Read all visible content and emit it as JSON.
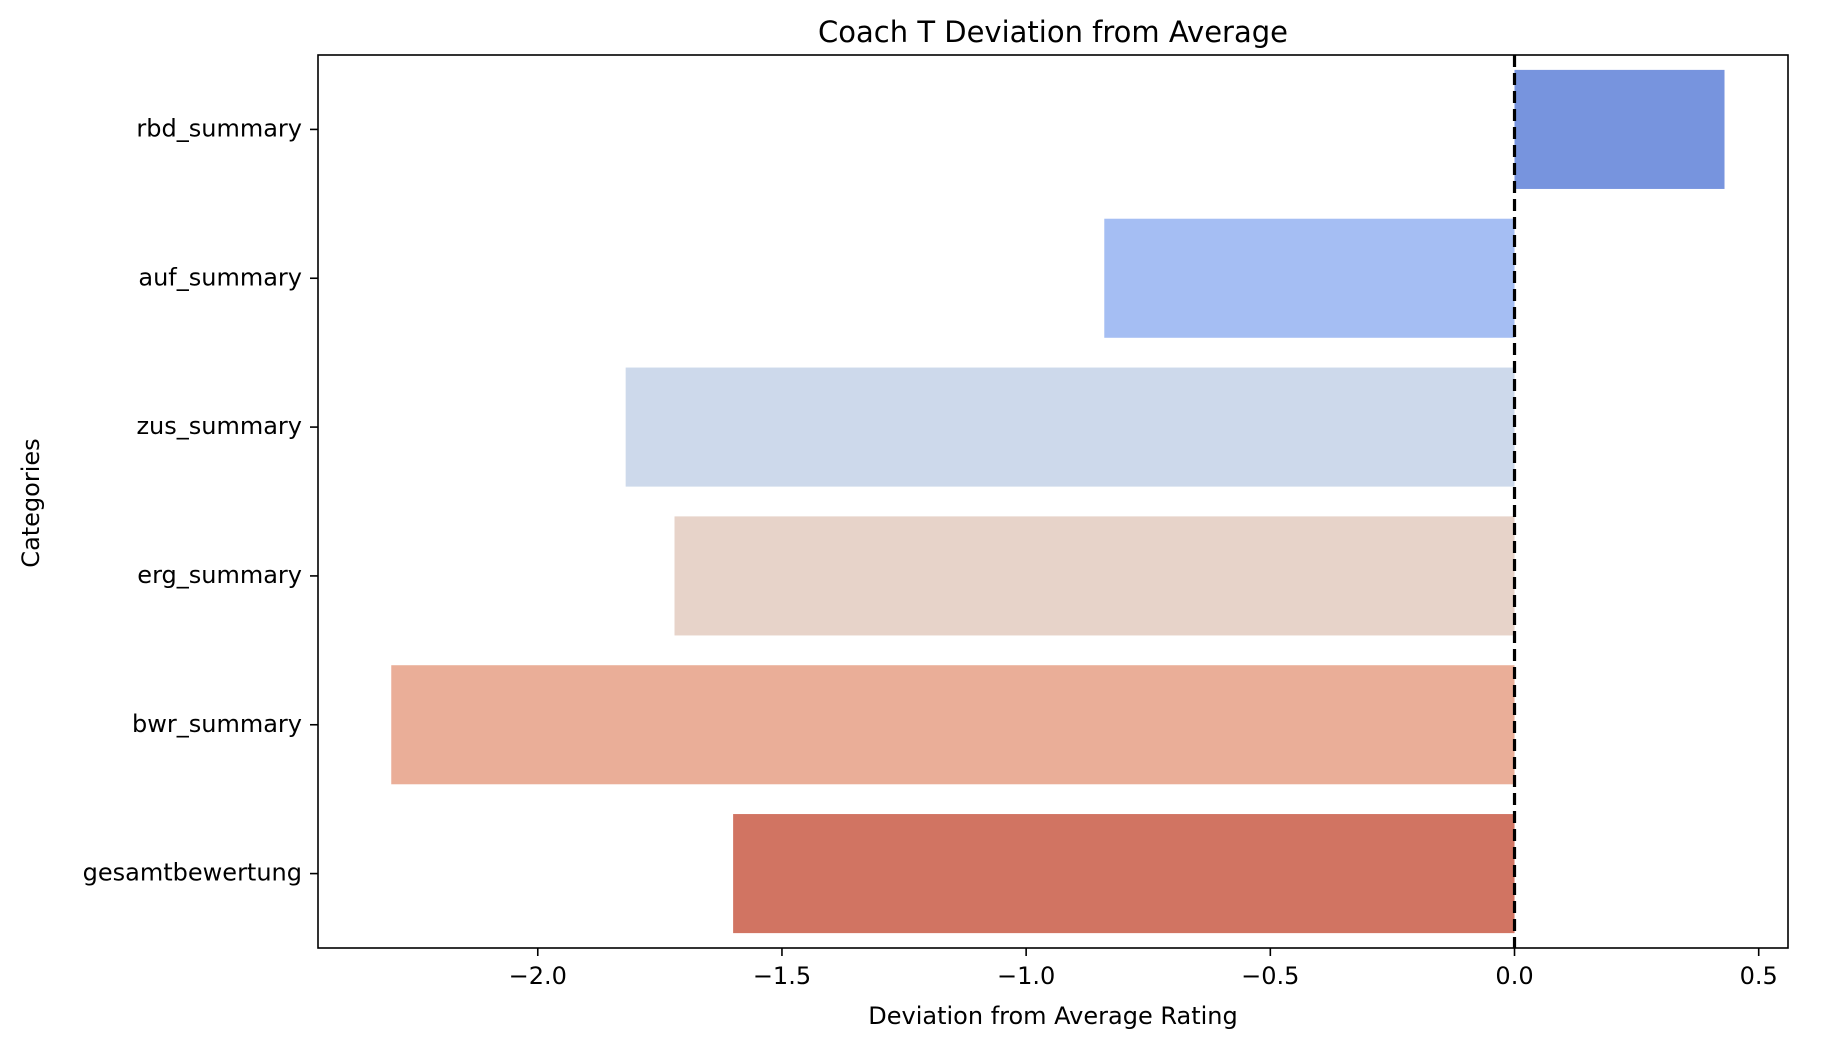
{
  "chart_data": {
    "type": "bar",
    "orientation": "horizontal",
    "title": "Coach T Deviation from Average",
    "xlabel": "Deviation from Average Rating",
    "ylabel": "Categories",
    "categories": [
      "rbd_summary",
      "auf_summary",
      "zus_summary",
      "erg_summary",
      "bwr_summary",
      "gesamtbewertung"
    ],
    "values": [
      0.43,
      -0.84,
      -1.82,
      -1.72,
      -2.3,
      -1.6
    ],
    "colors": [
      "#7794DE",
      "#A5BEF3",
      "#CDD9EB",
      "#E7D3C9",
      "#EAAE98",
      "#D17462"
    ],
    "xlim": [
      -2.45,
      0.56
    ],
    "xticks": [
      -2.0,
      -1.5,
      -1.0,
      -0.5,
      0.0,
      0.5
    ],
    "xtick_labels": [
      "−2.0",
      "−1.5",
      "−1.0",
      "−0.5",
      "0.0",
      "0.5"
    ],
    "reference_line": {
      "x": 0,
      "style": "dashed",
      "color": "#000000"
    },
    "grid": false,
    "legend": "none"
  }
}
